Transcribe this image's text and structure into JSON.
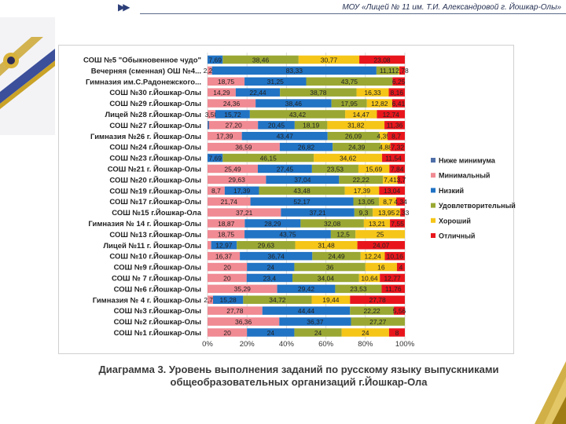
{
  "header": {
    "arrows": "▶▶",
    "title": "МОУ «Лицей № 11 им. Т.И. Александровой г. Йошкар-Олы»"
  },
  "caption": {
    "line1": "Диаграмма 3. Уровень выполнения заданий по русскому языку выпускниками",
    "line2": "общеобразовательных организаций г.Йошкар-Ола"
  },
  "chart_data": {
    "type": "bar",
    "orientation": "horizontal",
    "stacked": "percent",
    "title": "",
    "xlabel": "",
    "ylabel": "",
    "xlim": [
      0,
      100
    ],
    "x_ticks": [
      "0%",
      "20%",
      "40%",
      "60%",
      "80%",
      "100%"
    ],
    "legend_position": "right",
    "categories": [
      "СОШ №5 \"Обыкновенное чудо\"",
      "Вечерняя (сменная) ОШ №4...",
      "Гимназия им.С.Радонежского...",
      "СОШ №30 г.Йошкар-Олы",
      "СОШ №29 г.Йошкар-Олы",
      "Лицей №28 г.Йошкар-Олы",
      "СОШ №27 г.Йошкар-Олы",
      "Гимназия №26 г. Йошкар-Олы",
      "СОШ №24 г.Йошкар-Олы",
      "СОШ №23 г.Йошкар-Олы",
      "СОШ №21 г. Йошкар-Олы",
      "СОШ №20 г.Йошкар-Олы",
      "СОШ №19 г.Йошкар-Олы",
      "СОШ №17 г.Йошкар-Олы",
      "СОШ №15 г.Йошкар-Ола",
      "Гимназия № 14 г. Йошкар-Олы",
      "СОШ №13 г.Йошкар-Олы",
      "Лицей №11 г. Йошкар-Олы",
      "СОШ №10 г.Йошкар-Олы",
      "СОШ №9 г.Йошкар-Олы",
      "СОШ № 7 г.Йошкар-Олы",
      "СОШ №6 г.Йошкар-Олы",
      "Гимназия № 4 г. Йошкар-Олы",
      "СОШ №3 г.Йошкар-Олы",
      "СОШ №2 г.Йошкар-Олы",
      "СОШ №1 г.Йошкар-Олы"
    ],
    "series": [
      {
        "name": "Ниже минимума",
        "color": "#4f6fa8",
        "values": [
          0,
          0,
          0,
          0,
          0,
          0,
          0.9,
          0,
          0,
          0,
          0,
          0,
          0,
          0,
          0,
          0,
          0,
          0,
          0,
          0,
          0,
          0,
          0,
          0,
          0,
          0
        ],
        "labels": [
          "",
          "",
          "",
          "",
          "",
          "",
          "",
          "",
          "",
          "",
          "",
          "",
          "",
          "",
          "",
          "",
          "",
          "",
          "",
          "",
          "",
          "",
          "",
          "",
          "",
          ""
        ]
      },
      {
        "name": "Минимальный",
        "color": "#f08a93",
        "values": [
          0,
          2.28,
          18.75,
          14.29,
          24.36,
          3.58,
          27.2,
          17.39,
          36.59,
          0,
          25.49,
          29.63,
          8.7,
          21.74,
          37.21,
          18.87,
          18.75,
          1.85,
          16.37,
          20,
          20,
          35.29,
          2.78,
          27.78,
          36.36,
          20
        ],
        "labels": [
          "",
          "2,28",
          "18,75",
          "14,29",
          "24,36",
          "3,58",
          "27,20",
          "17,39",
          "36,59",
          "",
          "25,49",
          "29,63",
          "8,7",
          "21,74",
          "37,21",
          "18,87",
          "18,75",
          "1,85",
          "16,37",
          "20",
          "20",
          "35,29",
          "2,78",
          "27,78",
          "36,36",
          "20"
        ]
      },
      {
        "name": "Низкий",
        "color": "#2173c4",
        "values": [
          7.69,
          83.33,
          31.25,
          22.44,
          38.46,
          15.72,
          20.45,
          43.47,
          26.82,
          7.69,
          27.45,
          37.04,
          17.39,
          52.17,
          37.21,
          28.29,
          43.75,
          12.97,
          36.74,
          24,
          23.4,
          29.42,
          15.28,
          44.44,
          36.37,
          24
        ],
        "labels": [
          "7,69",
          "83,33",
          "31,25",
          "22,44",
          "38,46",
          "15,72",
          "20,45",
          "43,47",
          "26,82",
          "7,69",
          "27,45",
          "37,04",
          "17,39",
          "52,17",
          "37,21",
          "28,29",
          "43,75",
          "12,97",
          "36,74",
          "24",
          "23,4",
          "29,42",
          "15,28",
          "44,44",
          "36,37",
          "24"
        ]
      },
      {
        "name": "Удовлетворительный",
        "color": "#9aa833",
        "values": [
          38.46,
          11.11,
          43.75,
          38.78,
          17.95,
          43.42,
          18.19,
          26.09,
          24.39,
          46.15,
          23.53,
          22.22,
          43.48,
          13.05,
          9.3,
          32.08,
          12.5,
          29.63,
          24.49,
          36,
          34.04,
          23.53,
          34.72,
          22.22,
          27.27,
          24
        ],
        "labels": [
          "38,46",
          "11,11",
          "43,75",
          "38,78",
          "17,95",
          "43,42",
          "18,19",
          "26,09",
          "24,39",
          "46,15",
          "23,53",
          "22,22",
          "43,48",
          "13,05",
          "9,3",
          "32,08",
          "12,5",
          "29,63",
          "24,49",
          "36",
          "34,04",
          "23,53",
          "34,72",
          "22,22",
          "27,27",
          "24"
        ]
      },
      {
        "name": "Хороший",
        "color": "#f5c518",
        "values": [
          30.77,
          0.5,
          0,
          16.33,
          12.82,
          14.47,
          31.82,
          4.35,
          4.88,
          34.62,
          15.69,
          7.41,
          17.39,
          8.7,
          13.95,
          13.21,
          25,
          31.48,
          12.24,
          16,
          10.64,
          0,
          19.44,
          0,
          0,
          24
        ],
        "labels": [
          "30,77",
          "",
          "",
          "16,33",
          "12,82",
          "14,47",
          "31,82",
          "4,35",
          "4,88",
          "34,62",
          "15,69",
          "7,41",
          "17,39",
          "8,7",
          "13,95",
          "13,21",
          "25",
          "31,48",
          "12,24",
          "16",
          "10,64",
          "",
          "19,44",
          "",
          "",
          "24"
        ]
      },
      {
        "name": "Отличный",
        "color": "#e8161c",
        "values": [
          23.08,
          2.78,
          6.25,
          8.16,
          6.41,
          12.74,
          11.36,
          8.7,
          7.32,
          11.54,
          7.84,
          3.7,
          13.04,
          4.34,
          2.33,
          7.55,
          0,
          24.07,
          10.16,
          4,
          12.77,
          11.76,
          27.78,
          5.56,
          0,
          8
        ],
        "labels": [
          "23,08",
          "2,78",
          "6,25",
          "8,16",
          "6,41",
          "12,74",
          "11,36",
          "8,7",
          "7,32",
          "11,54",
          "7,84",
          "3,7",
          "13,04",
          "4,34",
          "2,33",
          "7,55",
          "",
          "24,07",
          "10,16",
          "4",
          "12,77",
          "11,76",
          "27,78",
          "5,56",
          "",
          "8"
        ]
      }
    ]
  }
}
